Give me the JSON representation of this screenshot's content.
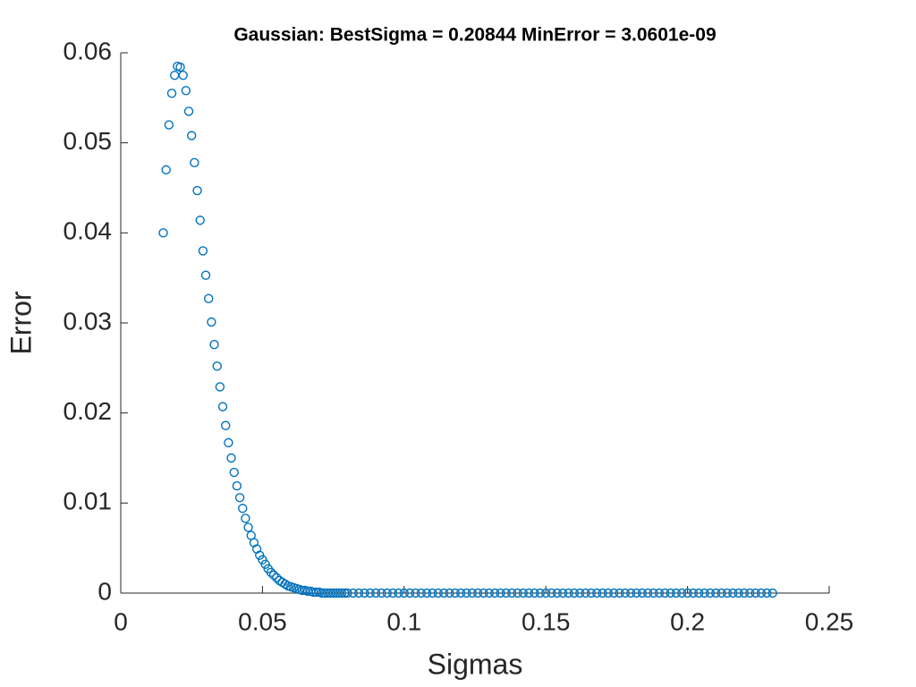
{
  "chart_data": {
    "type": "scatter",
    "title": "Gaussian: BestSigma = 0.20844 MinError = 3.0601e-09",
    "x_label": "Sigmas",
    "y_label": "Error",
    "xlim": [
      0,
      0.25
    ],
    "ylim": [
      0,
      0.06
    ],
    "xticks": [
      0,
      0.05,
      0.1,
      0.15,
      0.2,
      0.25
    ],
    "yticks": [
      0,
      0.01,
      0.02,
      0.03,
      0.04,
      0.05,
      0.06
    ],
    "color": "#0072bd",
    "x": [
      0.015,
      0.016,
      0.017,
      0.018,
      0.019,
      0.02,
      0.021,
      0.022,
      0.023,
      0.024,
      0.025,
      0.026,
      0.027,
      0.028,
      0.029,
      0.03,
      0.031,
      0.032,
      0.033,
      0.034,
      0.035,
      0.036,
      0.037,
      0.038,
      0.039,
      0.04,
      0.041,
      0.042,
      0.043,
      0.044,
      0.045,
      0.046,
      0.047,
      0.048,
      0.049,
      0.05,
      0.051,
      0.052,
      0.053,
      0.054,
      0.055,
      0.056,
      0.057,
      0.058,
      0.059,
      0.06,
      0.061,
      0.062,
      0.063,
      0.064,
      0.065,
      0.066,
      0.067,
      0.068,
      0.069,
      0.07,
      0.071,
      0.072,
      0.073,
      0.074,
      0.075,
      0.076,
      0.077,
      0.078,
      0.079,
      0.08,
      0.082,
      0.084,
      0.086,
      0.088,
      0.09,
      0.092,
      0.094,
      0.096,
      0.098,
      0.1,
      0.102,
      0.104,
      0.106,
      0.108,
      0.11,
      0.112,
      0.114,
      0.116,
      0.118,
      0.12,
      0.122,
      0.124,
      0.126,
      0.128,
      0.13,
      0.132,
      0.134,
      0.136,
      0.138,
      0.14,
      0.142,
      0.144,
      0.146,
      0.148,
      0.15,
      0.152,
      0.154,
      0.156,
      0.158,
      0.16,
      0.162,
      0.164,
      0.166,
      0.168,
      0.17,
      0.172,
      0.174,
      0.176,
      0.178,
      0.18,
      0.182,
      0.184,
      0.186,
      0.188,
      0.19,
      0.192,
      0.194,
      0.196,
      0.198,
      0.2,
      0.202,
      0.204,
      0.206,
      0.208,
      0.21,
      0.212,
      0.214,
      0.216,
      0.218,
      0.22,
      0.222,
      0.224,
      0.226,
      0.228,
      0.23
    ],
    "values": [
      0.04,
      0.047,
      0.052,
      0.0555,
      0.0575,
      0.0585,
      0.0584,
      0.0575,
      0.0558,
      0.0535,
      0.0508,
      0.0478,
      0.0447,
      0.0414,
      0.038,
      0.0353,
      0.0327,
      0.0301,
      0.0276,
      0.0252,
      0.0229,
      0.0207,
      0.0186,
      0.0167,
      0.015,
      0.0134,
      0.0119,
      0.0106,
      0.0094,
      0.0083,
      0.0073,
      0.0064,
      0.0056,
      0.0049,
      0.0042,
      0.0037,
      0.0032,
      0.0027,
      0.0023,
      0.002,
      0.0017,
      0.0014,
      0.0012,
      0.001,
      0.0008,
      0.0007,
      0.0006,
      0.0005,
      0.0004,
      0.0003,
      0.0003,
      0.0002,
      0.0002,
      0.0001,
      0.0001,
      0.0001,
      0,
      0,
      0,
      0,
      0,
      0,
      0,
      0,
      0,
      0,
      0,
      0,
      0,
      0,
      0,
      0,
      0,
      0,
      0,
      0,
      0,
      0,
      0,
      0,
      0,
      0,
      0,
      0,
      0,
      0,
      0,
      0,
      0,
      0,
      0,
      0,
      0,
      0,
      0,
      0,
      0,
      0,
      0,
      0,
      0,
      0,
      0,
      0,
      0,
      0,
      0,
      0,
      0,
      0,
      0,
      0,
      0,
      0,
      0,
      0,
      0,
      0,
      0,
      0,
      0,
      0,
      0,
      0,
      0,
      0,
      0,
      0,
      0,
      0,
      0,
      0,
      0,
      0,
      0,
      0,
      0,
      0,
      0,
      0,
      0
    ]
  }
}
